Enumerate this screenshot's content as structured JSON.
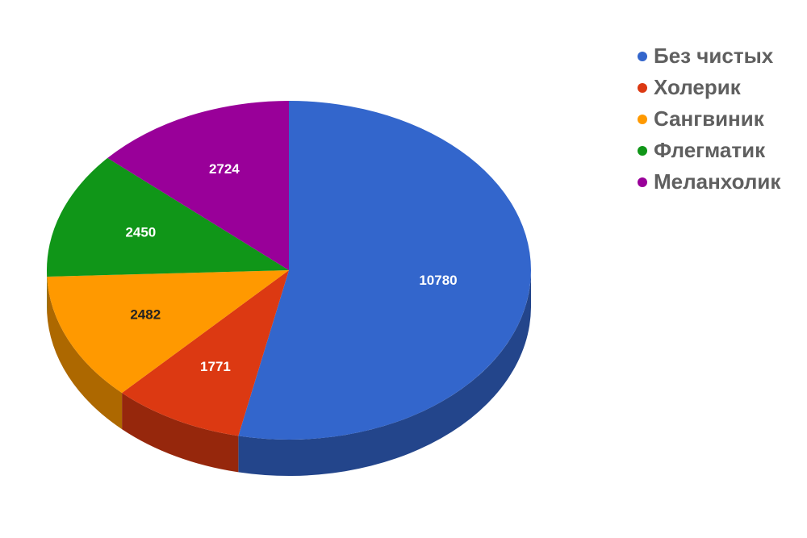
{
  "chart_data": {
    "type": "pie",
    "categories": [
      "Без чистых",
      "Холерик",
      "Сангвиник",
      "Флегматик",
      "Меланхолик"
    ],
    "values": [
      10780,
      1771,
      2482,
      2450,
      2724
    ],
    "colors": [
      "#3366cc",
      "#dc3912",
      "#ff9900",
      "#109618",
      "#990099"
    ],
    "legend": "right"
  }
}
